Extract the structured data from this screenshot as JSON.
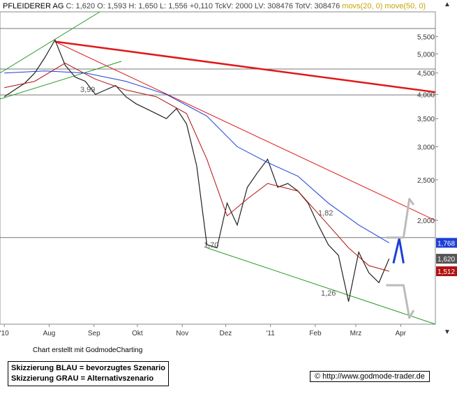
{
  "header": {
    "name": "PFLEIDERER AG",
    "ohlc": "C: 1,620 O: 1,593 H: 1,650 L: 1,556 +0,110 TckV: 2000 LV: 308476 TotV: 308476",
    "ma_text": "movs(20, 0) move(50, 0)"
  },
  "footer": {
    "credit": "Chart erstellt mit GodmodeCharting",
    "legend_blue": "Skizzierung BLAU = bevorzugtes Szenario",
    "legend_grey": "Skizzierung GRAU = Alternativszenario",
    "url": "© http://www.godmode-trader.de"
  },
  "chart_data": {
    "type": "line",
    "title": "PFLEIDERER AG",
    "y_scale": "log",
    "ylim": [
      1.13,
      6.3
    ],
    "y_ticks": [
      "5,500",
      "5,000",
      "4,500",
      "4,000",
      "3,500",
      "3,000",
      "2,500",
      "2,000"
    ],
    "y_tick_values": [
      5.5,
      5.0,
      4.5,
      4.0,
      3.5,
      3.0,
      2.5,
      2.0
    ],
    "x_ticks": [
      "'10",
      "Aug",
      "Sep",
      "Okt",
      "Nov",
      "Dez",
      "'11",
      "Feb",
      "Mrz",
      "Apr"
    ],
    "price_labels": [
      {
        "label": "1,768",
        "value": 1.768,
        "color": "#1c3fd6"
      },
      {
        "label": "1,620",
        "value": 1.62,
        "color": "#555555"
      },
      {
        "label": "1,512",
        "value": 1.512,
        "color": "#b01010"
      }
    ],
    "annotations": [
      "3,99",
      "1,70",
      "1,82",
      "1,26"
    ],
    "horizontal_levels": [
      5.75,
      4.6,
      3.99,
      1.82
    ],
    "series": [
      {
        "color": "#222222",
        "dates": [
          "2010-07-01",
          "2010-07-08",
          "2010-07-15",
          "2010-07-22",
          "2010-07-29",
          "2010-08-05",
          "2010-08-12",
          "2010-08-19",
          "2010-08-26",
          "2010-09-02",
          "2010-09-09",
          "2010-09-16",
          "2010-09-23",
          "2010-09-30",
          "2010-10-07",
          "2010-10-14",
          "2010-10-21",
          "2010-10-28",
          "2010-11-04",
          "2010-11-11",
          "2010-11-18",
          "2010-11-25",
          "2010-12-02",
          "2010-12-09",
          "2010-12-16",
          "2010-12-23",
          "2010-12-30",
          "2011-01-06",
          "2011-01-13",
          "2011-01-20",
          "2011-01-27",
          "2011-02-03",
          "2011-02-10",
          "2011-02-17",
          "2011-02-24",
          "2011-03-03",
          "2011-03-10",
          "2011-03-17",
          "2011-03-24"
        ],
        "values": [
          3.95,
          4.1,
          4.25,
          4.5,
          4.9,
          5.4,
          4.7,
          4.4,
          4.3,
          4.0,
          4.1,
          4.2,
          3.95,
          3.8,
          3.7,
          3.6,
          3.5,
          3.7,
          3.4,
          2.7,
          1.75,
          1.72,
          2.2,
          1.95,
          2.4,
          2.6,
          2.8,
          2.4,
          2.45,
          2.35,
          2.2,
          1.95,
          1.75,
          1.65,
          1.28,
          1.68,
          1.5,
          1.42,
          1.62
        ]
      },
      {
        "color": "#b01010",
        "dates": [
          "2010-07-01",
          "2010-07-22",
          "2010-08-12",
          "2010-09-02",
          "2010-09-23",
          "2010-10-14",
          "2010-11-04",
          "2010-11-18",
          "2010-12-02",
          "2010-12-16",
          "2010-12-30",
          "2011-01-20",
          "2011-02-10",
          "2011-02-24",
          "2011-03-10",
          "2011-03-24"
        ],
        "values": [
          4.15,
          4.3,
          4.75,
          4.35,
          4.1,
          3.95,
          3.6,
          2.8,
          2.05,
          2.25,
          2.45,
          2.35,
          1.95,
          1.72,
          1.56,
          1.512
        ]
      },
      {
        "color": "#1c3fd6",
        "dates": [
          "2010-07-01",
          "2010-07-29",
          "2010-08-26",
          "2010-09-23",
          "2010-10-21",
          "2010-11-18",
          "2010-12-09",
          "2010-12-30",
          "2011-01-20",
          "2011-02-10",
          "2011-03-03",
          "2011-03-24"
        ],
        "values": [
          4.5,
          4.55,
          4.5,
          4.3,
          4.0,
          3.55,
          3.0,
          2.75,
          2.55,
          2.2,
          1.95,
          1.768
        ]
      }
    ],
    "trendlines": [
      {
        "color": "#e01818",
        "width": 2.5,
        "from": [
          "2010-08-05",
          5.35
        ],
        "to": [
          "2011-04-25",
          4.05
        ]
      },
      {
        "color": "#e01818",
        "width": 1,
        "from": [
          "2010-08-05",
          5.35
        ],
        "to": [
          "2011-04-25",
          2.0
        ]
      },
      {
        "color": "#2a9a2a",
        "width": 1,
        "from": [
          "2010-11-18",
          1.72
        ],
        "to": [
          "2011-04-25",
          1.13
        ]
      },
      {
        "color": "#2a9a2a",
        "width": 1,
        "from": [
          "2010-06-28",
          4.5
        ],
        "to": [
          "2010-09-05",
          6.3
        ]
      },
      {
        "color": "#2a9a2a",
        "width": 1,
        "from": [
          "2010-06-28",
          3.9
        ],
        "to": [
          "2010-09-20",
          4.8
        ]
      }
    ],
    "scenarios": [
      {
        "name": "blue",
        "color": "#1c3fd6",
        "points": [
          [
            "2011-03-27",
            1.58
          ],
          [
            "2011-03-31",
            1.81
          ],
          [
            "2011-04-03",
            1.58
          ]
        ]
      },
      {
        "name": "grey",
        "color": "#bbbbbb",
        "points": [
          [
            "2011-03-22",
            1.82
          ],
          [
            "2011-04-03",
            1.82
          ],
          [
            "2011-04-07",
            2.25
          ],
          [
            "2011-04-10",
            2.18
          ]
        ]
      },
      {
        "name": "grey-down",
        "color": "#bbbbbb",
        "points": [
          [
            "2011-03-22",
            1.4
          ],
          [
            "2011-04-03",
            1.4
          ],
          [
            "2011-04-07",
            1.17
          ],
          [
            "2011-04-10",
            1.22
          ]
        ]
      }
    ]
  }
}
